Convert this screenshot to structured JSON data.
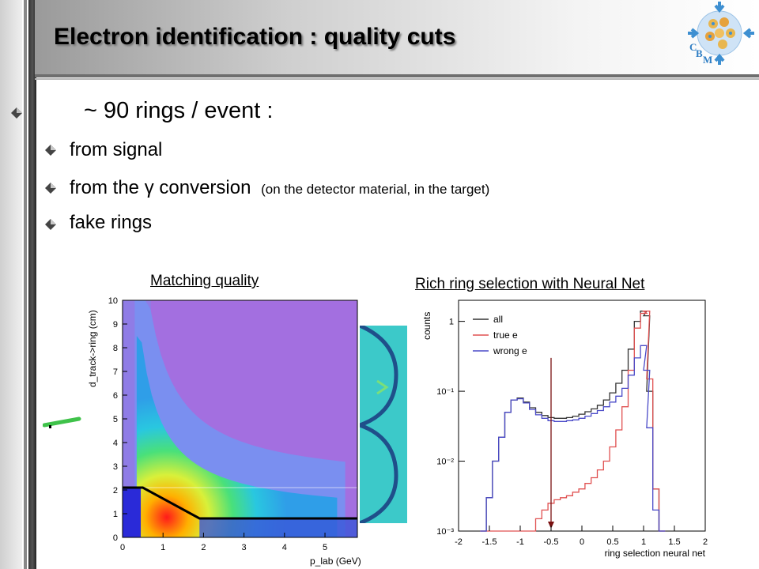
{
  "slide": {
    "title": "Electron identification  : quality cuts",
    "headline": "~ 90 rings / event  :",
    "bullets": [
      {
        "text": "from signal",
        "note": ""
      },
      {
        "text": "from the γ conversion",
        "note": "(on the detector material, in the target)"
      },
      {
        "text": "fake rings",
        "note": ""
      }
    ],
    "logo_text": {
      "c": "C",
      "b": "B",
      "m": "M"
    },
    "colors": {
      "logo_blue": "#3d8fd1",
      "arrow_dark": "#7a1010",
      "black_cut": "#000000"
    },
    "icons": {
      "bullet": "diamond-bullet-icon",
      "logo": "cbm-logo-icon"
    }
  },
  "chart_data": [
    {
      "type": "heatmap",
      "title": "Matching quality",
      "xlabel": "p_lab (GeV)",
      "ylabel": "d_track->ring (cm)",
      "xlim": [
        0,
        5.8
      ],
      "ylim": [
        0,
        10
      ],
      "xticks": [
        "0",
        "1",
        "2",
        "3",
        "4",
        "5"
      ],
      "yticks": [
        "0",
        "1",
        "2",
        "3",
        "4",
        "5",
        "6",
        "7",
        "8",
        "9",
        "10"
      ],
      "cut_line": {
        "x": [
          0,
          0.5,
          1.9,
          5.8
        ],
        "y": [
          2.1,
          2.1,
          0.8,
          0.8
        ]
      }
    },
    {
      "type": "line",
      "title": "Rich ring selection with Neural Net",
      "xlabel": "ring selection neural net",
      "ylabel": "counts",
      "xlim": [
        -2,
        2
      ],
      "ylim": [
        0.001,
        2
      ],
      "yscale": "log",
      "xticks": [
        "-2",
        "-1.5",
        "-1",
        "-0.5",
        "0",
        "0.5",
        "1",
        "1.5",
        "2"
      ],
      "yticks": [
        "10⁻³",
        "10⁻²",
        "10⁻¹",
        "1"
      ],
      "legend": "top-left",
      "cut_value": -0.5,
      "x": [
        -1.6,
        -1.5,
        -1.4,
        -1.3,
        -1.2,
        -1.1,
        -1.0,
        -0.9,
        -0.8,
        -0.7,
        -0.6,
        -0.5,
        -0.4,
        -0.3,
        -0.2,
        -0.1,
        0.0,
        0.1,
        0.2,
        0.3,
        0.4,
        0.5,
        0.6,
        0.7,
        0.8,
        0.9,
        1.0,
        1.05,
        1.1,
        1.2,
        1.3
      ],
      "series": [
        {
          "name": "all",
          "color": "#333333",
          "values": [
            0.001,
            0.003,
            0.01,
            0.022,
            0.05,
            0.075,
            0.08,
            0.07,
            0.058,
            0.05,
            0.045,
            0.042,
            0.041,
            0.041,
            0.042,
            0.044,
            0.047,
            0.051,
            0.056,
            0.063,
            0.075,
            0.095,
            0.13,
            0.2,
            0.4,
            1.0,
            1.4,
            1.2,
            0.1,
            0.004,
            0.001
          ]
        },
        {
          "name": "true e",
          "color": "#e05050",
          "values": [
            0.0,
            0.0,
            0.0,
            0.0,
            0.0,
            0.0,
            0.0,
            0.0,
            0.0,
            0.0015,
            0.002,
            0.0025,
            0.0028,
            0.003,
            0.0032,
            0.0036,
            0.004,
            0.0048,
            0.0058,
            0.0075,
            0.01,
            0.016,
            0.028,
            0.06,
            0.2,
            0.8,
            1.3,
            1.4,
            0.15,
            0.004,
            0.001
          ]
        },
        {
          "name": "wrong e",
          "color": "#4a4ac8",
          "values": [
            0.001,
            0.003,
            0.01,
            0.022,
            0.05,
            0.075,
            0.078,
            0.068,
            0.055,
            0.046,
            0.041,
            0.038,
            0.037,
            0.037,
            0.038,
            0.039,
            0.041,
            0.044,
            0.048,
            0.053,
            0.06,
            0.07,
            0.085,
            0.11,
            0.17,
            0.3,
            0.45,
            0.2,
            0.03,
            0.002,
            0.001
          ]
        }
      ]
    }
  ]
}
